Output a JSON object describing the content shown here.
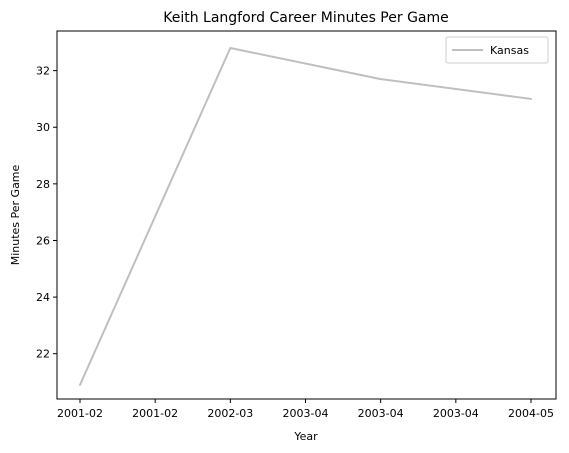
{
  "chart_data": {
    "type": "line",
    "title": "Keith Langford Career Minutes Per Game",
    "xlabel": "Year",
    "ylabel": "Minutes Per Game",
    "x_tick_labels": [
      "2001-02",
      "2001-02",
      "2002-03",
      "2003-04",
      "2003-04",
      "2003-04",
      "2004-05"
    ],
    "x_range": [
      0,
      3
    ],
    "y_range": [
      20.4,
      33.4
    ],
    "y_ticks": [
      22,
      24,
      26,
      28,
      30,
      32
    ],
    "grid": false,
    "legend_placement": "top-right",
    "series": [
      {
        "name": "Kansas",
        "color": "#bfbfbf",
        "x": [
          "2001-02",
          "2002-03",
          "2003-04",
          "2004-05"
        ],
        "values": [
          20.9,
          32.8,
          31.7,
          31.0
        ]
      }
    ]
  }
}
